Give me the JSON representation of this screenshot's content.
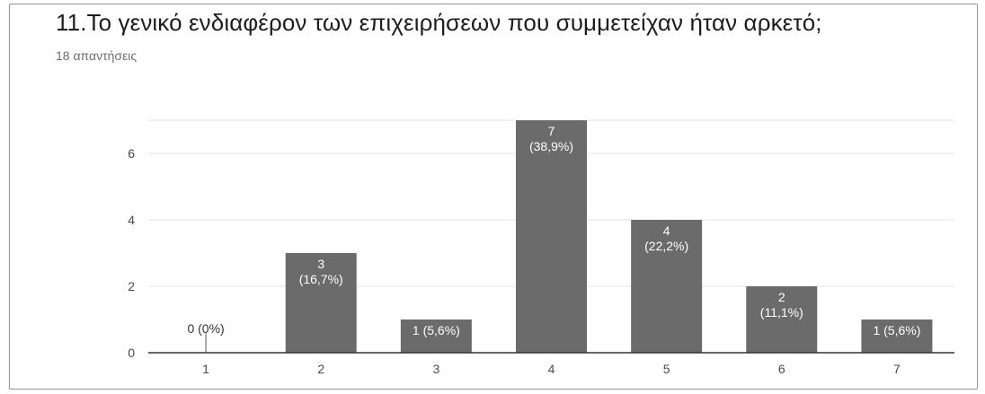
{
  "question": {
    "title": "11.Το γενικό ενδιαφέρον των επιχειρήσεων που συμμετείχαν ήταν αρκετό;",
    "responses": "18 απαντήσεις"
  },
  "chart_data": {
    "type": "bar",
    "categories": [
      "1",
      "2",
      "3",
      "4",
      "5",
      "6",
      "7"
    ],
    "values": [
      0,
      3,
      1,
      7,
      4,
      2,
      1
    ],
    "labels": [
      "0 (0%)",
      "3\n(16,7%)",
      "1 (5,6%)",
      "7\n(38,9%)",
      "4\n(22,2%)",
      "2\n(11,1%)",
      "1 (5,6%)"
    ],
    "yticks": [
      0,
      2,
      4,
      6
    ],
    "ylim": [
      0,
      7
    ],
    "grid": true,
    "title": "",
    "xlabel": "",
    "ylabel": "",
    "colors": {
      "bar": "#6b6b6b",
      "grid": "#e3e3e3",
      "axis": "#333333",
      "label_inside": "#ffffff",
      "label_outside": "#333333"
    }
  }
}
